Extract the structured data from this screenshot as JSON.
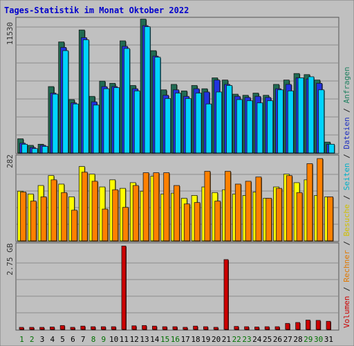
{
  "chart_data": [
    {
      "type": "bar",
      "panel": "top",
      "title": "Tages-Statistik im Monat Oktober 2022",
      "y_tick_label": "11530",
      "ylim": [
        0,
        12400
      ],
      "categories": [
        "1",
        "2",
        "3",
        "4",
        "5",
        "6",
        "7",
        "8",
        "9",
        "10",
        "11",
        "12",
        "13",
        "14",
        "15",
        "16",
        "17",
        "18",
        "19",
        "20",
        "21",
        "22",
        "23",
        "24",
        "25",
        "26",
        "27",
        "28",
        "29",
        "30",
        "31"
      ],
      "weekend_days": [
        "1",
        "2",
        "8",
        "9",
        "15",
        "16",
        "22",
        "23",
        "29",
        "30"
      ],
      "series": [
        {
          "name": "Anfragen",
          "color": "#216b53",
          "values": [
            1300,
            700,
            800,
            6100,
            10200,
            4900,
            11300,
            5200,
            6600,
            6400,
            10300,
            6200,
            12300,
            9400,
            5800,
            6300,
            5700,
            6200,
            5900,
            6900,
            6700,
            5400,
            5300,
            5500,
            5300,
            6300,
            6700,
            7300,
            7200,
            6700,
            1000
          ]
        },
        {
          "name": "Dateien",
          "color": "#2033e0",
          "values": [
            900,
            500,
            700,
            5500,
            9700,
            4600,
            10600,
            4700,
            6100,
            6100,
            9800,
            5900,
            11700,
            8900,
            5300,
            5800,
            5200,
            5900,
            5600,
            6700,
            6300,
            5200,
            5100,
            5200,
            5100,
            5900,
            6300,
            6900,
            6800,
            6400,
            800
          ]
        },
        {
          "name": "Seiten",
          "color": "#00d4ff",
          "values": [
            800,
            400,
            600,
            5400,
            9400,
            4500,
            10400,
            4400,
            5900,
            6000,
            9600,
            5700,
            11600,
            8800,
            5000,
            5500,
            5000,
            5500,
            4500,
            5600,
            6200,
            4900,
            4800,
            4600,
            4800,
            5800,
            5700,
            6900,
            7000,
            5800,
            800
          ]
        }
      ]
    },
    {
      "type": "bar",
      "panel": "middle",
      "y_tick_label": "282",
      "ylim": [
        0,
        300
      ],
      "categories": [
        "1",
        "2",
        "3",
        "4",
        "5",
        "6",
        "7",
        "8",
        "9",
        "10",
        "11",
        "12",
        "13",
        "14",
        "15",
        "16",
        "17",
        "18",
        "19",
        "20",
        "21",
        "22",
        "23",
        "24",
        "25",
        "26",
        "27",
        "28",
        "29",
        "30",
        "31"
      ],
      "series": [
        {
          "name": "Besuche",
          "color": "#ffff00",
          "values": [
            175,
            165,
            195,
            230,
            200,
            155,
            262,
            235,
            190,
            215,
            185,
            205,
            175,
            228,
            165,
            168,
            150,
            160,
            190,
            170,
            180,
            165,
            160,
            172,
            150,
            190,
            235,
            205,
            215,
            160,
            155
          ]
        },
        {
          "name": "Rechner",
          "color": "#ff8000",
          "values": [
            172,
            140,
            155,
            215,
            170,
            108,
            242,
            210,
            112,
            180,
            118,
            195,
            240,
            240,
            240,
            195,
            130,
            135,
            245,
            140,
            245,
            200,
            210,
            225,
            150,
            185,
            230,
            170,
            272,
            290,
            155
          ]
        }
      ]
    },
    {
      "type": "bar",
      "panel": "bottom",
      "y_tick_label": "2.75 GB",
      "ylim": [
        0,
        2.85
      ],
      "categories": [
        "1",
        "2",
        "3",
        "4",
        "5",
        "6",
        "7",
        "8",
        "9",
        "10",
        "11",
        "12",
        "13",
        "14",
        "15",
        "16",
        "17",
        "18",
        "19",
        "20",
        "21",
        "22",
        "23",
        "24",
        "25",
        "26",
        "27",
        "28",
        "29",
        "30",
        "31"
      ],
      "series": [
        {
          "name": "Volumen",
          "color": "#cc0000",
          "values": [
            0.06,
            0.04,
            0.04,
            0.08,
            0.13,
            0.07,
            0.11,
            0.09,
            0.09,
            0.09,
            2.77,
            0.12,
            0.13,
            0.11,
            0.09,
            0.09,
            0.07,
            0.11,
            0.09,
            0.07,
            2.32,
            0.1,
            0.09,
            0.08,
            0.09,
            0.09,
            0.2,
            0.23,
            0.31,
            0.3,
            0.27
          ]
        }
      ]
    }
  ],
  "legend_vertical": [
    {
      "text": "Volumen",
      "color": "#cc0000"
    },
    {
      "text": " / ",
      "color": "#222222"
    },
    {
      "text": "Rechner",
      "color": "#e07800"
    },
    {
      "text": " / ",
      "color": "#222222"
    },
    {
      "text": "Besuche",
      "color": "#d0c000"
    },
    {
      "text": " / ",
      "color": "#222222"
    },
    {
      "text": "Seiten",
      "color": "#00b0c8"
    },
    {
      "text": " / ",
      "color": "#222222"
    },
    {
      "text": "Dateien",
      "color": "#2030c0"
    },
    {
      "text": " / ",
      "color": "#222222"
    },
    {
      "text": "Anfragen",
      "color": "#208060"
    }
  ],
  "colors": {
    "background": "#c0c0c0",
    "title": "#0000cc",
    "weekday_label": "#000000",
    "weekend_label": "#007000",
    "grid": "#909090"
  }
}
